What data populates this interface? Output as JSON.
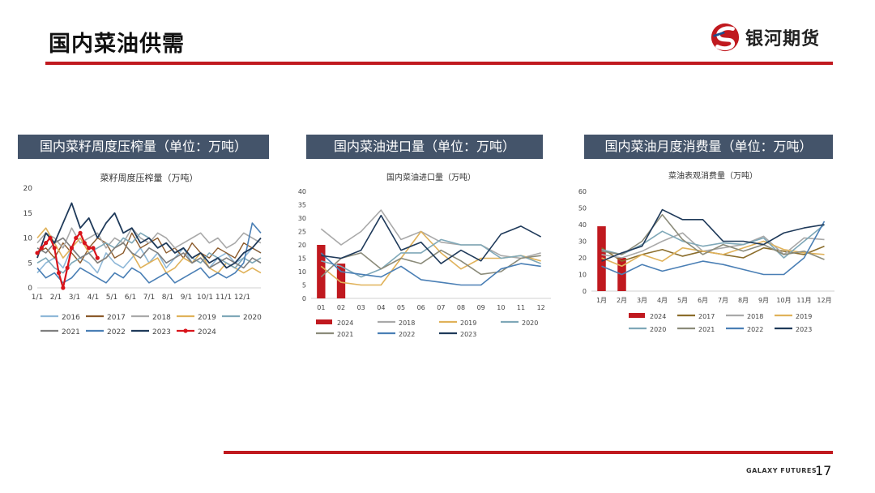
{
  "page": {
    "title": "国内菜油供需",
    "logo_text": "银河期货",
    "footer": "GALAXY FUTURES",
    "page_number": "17"
  },
  "panels": [
    {
      "header": "国内菜籽周度压榨量（单位：万吨）"
    },
    {
      "header": "国内菜油进口量（单位：万吨）"
    },
    {
      "header": "国内菜油月度消费量（单位：万吨）"
    }
  ],
  "colors": {
    "accent_red": "#c0191f",
    "header_bg": "#44546a"
  },
  "chart_data": [
    {
      "type": "line",
      "title": "菜籽周度压榨量（万吨）",
      "ylim": [
        0,
        20
      ],
      "yticks": [
        0,
        5,
        10,
        15,
        20
      ],
      "xlabels": [
        "1/1",
        "2/1",
        "3/1",
        "4/1",
        "5/1",
        "6/1",
        "7/1",
        "8/1",
        "9/1",
        "10/1",
        "11/1",
        "12/1"
      ],
      "x_range": [
        1,
        53
      ],
      "legend": "bottom",
      "series": [
        {
          "name": "2016",
          "color": "#8fb8d8",
          "width": 1.6,
          "x": [
            1,
            3,
            5,
            7,
            9,
            11,
            13,
            15,
            17,
            19,
            21,
            23,
            25,
            27,
            29,
            31,
            33,
            35,
            37,
            39,
            41,
            43,
            45,
            47,
            49,
            51,
            53
          ],
          "y": [
            3,
            5,
            6,
            4,
            8,
            6,
            5,
            3,
            7,
            5,
            4,
            6,
            8,
            5,
            7,
            4,
            6,
            8,
            5,
            6,
            4,
            6,
            7,
            5,
            6,
            8,
            7
          ]
        },
        {
          "name": "2017",
          "color": "#8b5a2b",
          "width": 1.4,
          "x": [
            1,
            3,
            5,
            7,
            9,
            11,
            13,
            15,
            17,
            19,
            21,
            23,
            25,
            27,
            29,
            31,
            33,
            35,
            37,
            39,
            41,
            43,
            45,
            47,
            49,
            51,
            53
          ],
          "y": [
            7,
            8,
            6,
            9,
            7,
            5,
            8,
            10,
            9,
            6,
            7,
            11,
            8,
            9,
            10,
            7,
            8,
            6,
            9,
            7,
            6,
            8,
            7,
            6,
            9,
            8,
            7
          ]
        },
        {
          "name": "2018",
          "color": "#a9a9a9",
          "width": 1.6,
          "x": [
            1,
            3,
            5,
            7,
            9,
            11,
            13,
            15,
            17,
            19,
            21,
            23,
            25,
            27,
            29,
            31,
            33,
            35,
            37,
            39,
            41,
            43,
            45,
            47,
            49,
            51,
            53
          ],
          "y": [
            9,
            11,
            10,
            8,
            12,
            9,
            10,
            11,
            8,
            10,
            9,
            12,
            10,
            9,
            11,
            10,
            8,
            9,
            10,
            11,
            9,
            10,
            8,
            9,
            11,
            10,
            9
          ]
        },
        {
          "name": "2019",
          "color": "#e0b25a",
          "width": 1.6,
          "x": [
            1,
            3,
            5,
            7,
            9,
            11,
            13,
            15,
            17,
            19,
            21,
            23,
            25,
            27,
            29,
            31,
            33,
            35,
            37,
            39,
            41,
            43,
            45,
            47,
            49,
            51,
            53
          ],
          "y": [
            10,
            12,
            9,
            6,
            8,
            10,
            7,
            5,
            6,
            8,
            9,
            7,
            4,
            5,
            6,
            3,
            4,
            6,
            5,
            7,
            4,
            3,
            5,
            4,
            3,
            4,
            3
          ]
        },
        {
          "name": "2020",
          "color": "#7fa8b8",
          "width": 1.6,
          "x": [
            1,
            3,
            5,
            7,
            9,
            11,
            13,
            15,
            17,
            19,
            21,
            23,
            25,
            27,
            29,
            31,
            33,
            35,
            37,
            39,
            41,
            43,
            45,
            47,
            49,
            51,
            53
          ],
          "y": [
            5,
            6,
            4,
            3,
            5,
            6,
            7,
            8,
            9,
            8,
            10,
            9,
            11,
            10,
            8,
            9,
            7,
            8,
            6,
            5,
            7,
            6,
            5,
            4,
            6,
            5,
            6
          ]
        },
        {
          "name": "2021",
          "color": "#7f7f7f",
          "width": 1.6,
          "x": [
            1,
            3,
            5,
            7,
            9,
            11,
            13,
            15,
            17,
            19,
            21,
            23,
            25,
            27,
            29,
            31,
            33,
            35,
            37,
            39,
            41,
            43,
            45,
            47,
            49,
            51,
            53
          ],
          "y": [
            8,
            7,
            9,
            10,
            8,
            6,
            7,
            5,
            6,
            8,
            9,
            7,
            6,
            8,
            7,
            5,
            6,
            7,
            5,
            6,
            4,
            5,
            6,
            5,
            4,
            6,
            5
          ]
        },
        {
          "name": "2022",
          "color": "#4a7fb5",
          "width": 1.6,
          "x": [
            1,
            3,
            5,
            7,
            9,
            11,
            13,
            15,
            17,
            19,
            21,
            23,
            25,
            27,
            29,
            31,
            33,
            35,
            37,
            39,
            41,
            43,
            45,
            47,
            49,
            51,
            53
          ],
          "y": [
            4,
            2,
            3,
            1,
            2,
            4,
            3,
            2,
            1,
            3,
            2,
            4,
            3,
            1,
            2,
            3,
            1,
            2,
            3,
            4,
            2,
            3,
            2,
            3,
            5,
            13,
            11
          ]
        },
        {
          "name": "2023",
          "color": "#1f3a5a",
          "width": 1.8,
          "x": [
            1,
            3,
            5,
            7,
            9,
            11,
            13,
            15,
            17,
            19,
            21,
            23,
            25,
            27,
            29,
            31,
            33,
            35,
            37,
            39,
            41,
            43,
            45,
            47,
            49,
            51,
            53
          ],
          "y": [
            6,
            11,
            9,
            13,
            17,
            12,
            14,
            10,
            13,
            15,
            11,
            12,
            9,
            10,
            8,
            9,
            7,
            8,
            6,
            7,
            5,
            6,
            4,
            5,
            7,
            8,
            10
          ]
        },
        {
          "name": "2024",
          "color": "#d9141b",
          "width": 2.2,
          "marker": true,
          "x": [
            1,
            2,
            3,
            4,
            5,
            6,
            7,
            8,
            9,
            10,
            11,
            12,
            13,
            14,
            15
          ],
          "y": [
            7,
            8,
            9,
            10,
            8,
            3,
            0,
            4,
            8,
            10,
            11,
            9,
            8,
            8,
            6
          ]
        }
      ]
    },
    {
      "type": "line",
      "title": "国内菜油进口量（万吨）",
      "ylim": [
        0,
        40
      ],
      "yticks": [
        0,
        5,
        10,
        15,
        20,
        25,
        30,
        35,
        40
      ],
      "xlabels": [
        "01",
        "02",
        "03",
        "04",
        "05",
        "06",
        "07",
        "08",
        "09",
        "10",
        "11",
        "12"
      ],
      "legend": "bottom",
      "bars": {
        "name": "2024",
        "color": "#c0191f",
        "values": [
          20,
          13
        ]
      },
      "series": [
        {
          "name": "2018",
          "color": "#a9a9a9",
          "values": [
            26,
            20,
            25,
            33,
            22,
            25,
            21,
            20,
            20,
            16,
            15,
            17
          ]
        },
        {
          "name": "2019",
          "color": "#e0b25a",
          "values": [
            12,
            6,
            5,
            5,
            15,
            25,
            17,
            11,
            15,
            15,
            16,
            14
          ]
        },
        {
          "name": "2020",
          "color": "#7fa8b8",
          "values": [
            14,
            12,
            8,
            11,
            17,
            17,
            22,
            20,
            20,
            15,
            16,
            13
          ]
        },
        {
          "name": "2021",
          "color": "#8b8b7a",
          "values": [
            8,
            15,
            17,
            11,
            15,
            13,
            18,
            14,
            9,
            10,
            15,
            16
          ]
        },
        {
          "name": "2022",
          "color": "#4a7fb5",
          "values": [
            17,
            10,
            9,
            8,
            12,
            7,
            6,
            5,
            5,
            11,
            13,
            12
          ]
        },
        {
          "name": "2023",
          "color": "#1f3a5a",
          "values": [
            16,
            15,
            18,
            31,
            18,
            21,
            13,
            18,
            14,
            24,
            27,
            23
          ]
        }
      ]
    },
    {
      "type": "line",
      "title": "菜油表观消费量（万吨）",
      "ylim": [
        0,
        60
      ],
      "yticks": [
        0,
        10,
        20,
        30,
        40,
        50,
        60
      ],
      "xlabels": [
        "1月",
        "2月",
        "3月",
        "4月",
        "5月",
        "6月",
        "7月",
        "8月",
        "9月",
        "10月",
        "11月",
        "12月"
      ],
      "legend": "bottom",
      "bars": {
        "name": "2024",
        "color": "#c0191f",
        "values": [
          39,
          20
        ]
      },
      "series": [
        {
          "name": "2017",
          "color": "#8b6d2b",
          "values": [
            26,
            18,
            22,
            25,
            21,
            24,
            22,
            20,
            26,
            24,
            22,
            27
          ]
        },
        {
          "name": "2018",
          "color": "#a9a9a9",
          "values": [
            22,
            20,
            24,
            30,
            35,
            24,
            26,
            28,
            33,
            22,
            32,
            31
          ]
        },
        {
          "name": "2019",
          "color": "#e0b25a",
          "values": [
            20,
            15,
            22,
            18,
            26,
            24,
            22,
            26,
            30,
            25,
            23,
            22
          ]
        },
        {
          "name": "2020",
          "color": "#7fa8b8",
          "values": [
            25,
            22,
            28,
            36,
            30,
            27,
            29,
            28,
            32,
            20,
            30,
            40
          ]
        },
        {
          "name": "2021",
          "color": "#8b8b7a",
          "values": [
            24,
            22,
            30,
            46,
            31,
            22,
            28,
            24,
            28,
            22,
            24,
            19
          ]
        },
        {
          "name": "2022",
          "color": "#4a7fb5",
          "values": [
            15,
            10,
            16,
            12,
            15,
            18,
            16,
            13,
            10,
            10,
            20,
            42
          ]
        },
        {
          "name": "2023",
          "color": "#1f3a5a",
          "values": [
            18,
            23,
            27,
            49,
            43,
            43,
            30,
            30,
            28,
            35,
            38,
            40
          ]
        }
      ]
    }
  ]
}
